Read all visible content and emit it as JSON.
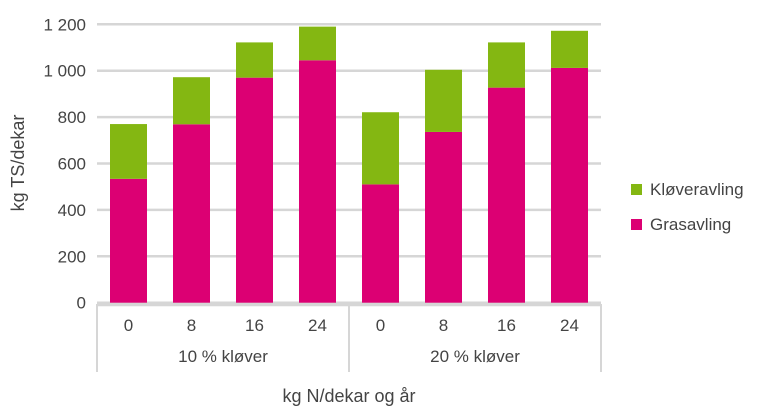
{
  "chart_data": {
    "type": "bar",
    "stacked": true,
    "ylabel": "kg TS/dekar",
    "xlabel": "kg N/dekar og år",
    "ylim": [
      0,
      1200
    ],
    "yticks": [
      0,
      200,
      400,
      600,
      800,
      1000,
      1200
    ],
    "ytick_labels": [
      "0",
      "200",
      "400",
      "600",
      "800",
      "1 000",
      "1 200"
    ],
    "groups": [
      {
        "label": "10 % kløver",
        "categories": [
          "0",
          "8",
          "16",
          "24"
        ]
      },
      {
        "label": "20 % kløver",
        "categories": [
          "0",
          "8",
          "16",
          "24"
        ]
      }
    ],
    "series": [
      {
        "name": "Grasavling",
        "color": "#dc0073",
        "values": [
          534,
          769,
          970,
          1045,
          510,
          736,
          927,
          1012
        ]
      },
      {
        "name": "Kløveravling",
        "color": "#84b712",
        "values": [
          236,
          203,
          152,
          145,
          311,
          268,
          195,
          160
        ]
      }
    ],
    "legend_order": [
      "Kløveravling",
      "Grasavling"
    ],
    "legend_position": "right",
    "grid": true
  }
}
